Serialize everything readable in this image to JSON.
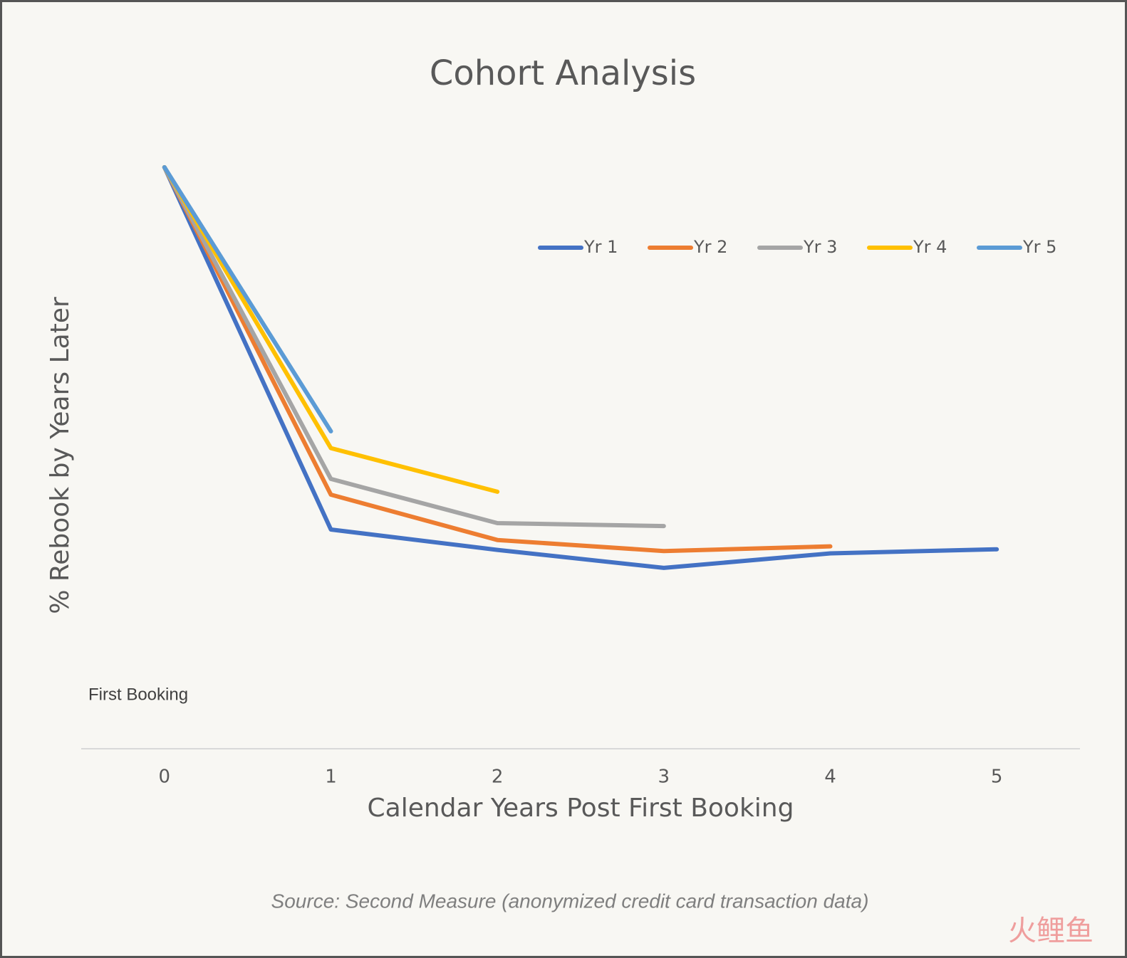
{
  "chart_data": {
    "type": "line",
    "title": "Cohort Analysis",
    "x_label": "Calendar Years Post First Booking",
    "y_label": "% Rebook by Years Later",
    "annotation": "First Booking",
    "source": "Source: Second Measure (anonymized credit card transaction data)",
    "watermark": "火鲤鱼",
    "x": [
      0,
      1,
      2,
      3,
      4,
      5
    ],
    "xlim": [
      -0.5,
      5.5
    ],
    "xticks": [
      0,
      1,
      2,
      3,
      4,
      5
    ],
    "ylim": [
      0,
      100
    ],
    "legend": "top-right",
    "series": [
      {
        "name": "Yr 1",
        "color": "#4472c4",
        "values": [
          100,
          37.7,
          34.2,
          31.1,
          33.6,
          34.3
        ]
      },
      {
        "name": "Yr 2",
        "color": "#ed7d31",
        "values": [
          100,
          43.7,
          35.9,
          34.0,
          34.8,
          null
        ]
      },
      {
        "name": "Yr 3",
        "color": "#a5a5a5",
        "values": [
          100,
          46.4,
          38.8,
          38.3,
          null,
          null
        ]
      },
      {
        "name": "Yr 4",
        "color": "#ffc000",
        "values": [
          100,
          51.7,
          44.2,
          null,
          null,
          null
        ]
      },
      {
        "name": "Yr 5",
        "color": "#5b9bd5",
        "values": [
          100,
          54.6,
          null,
          null,
          null,
          null
        ]
      }
    ]
  }
}
